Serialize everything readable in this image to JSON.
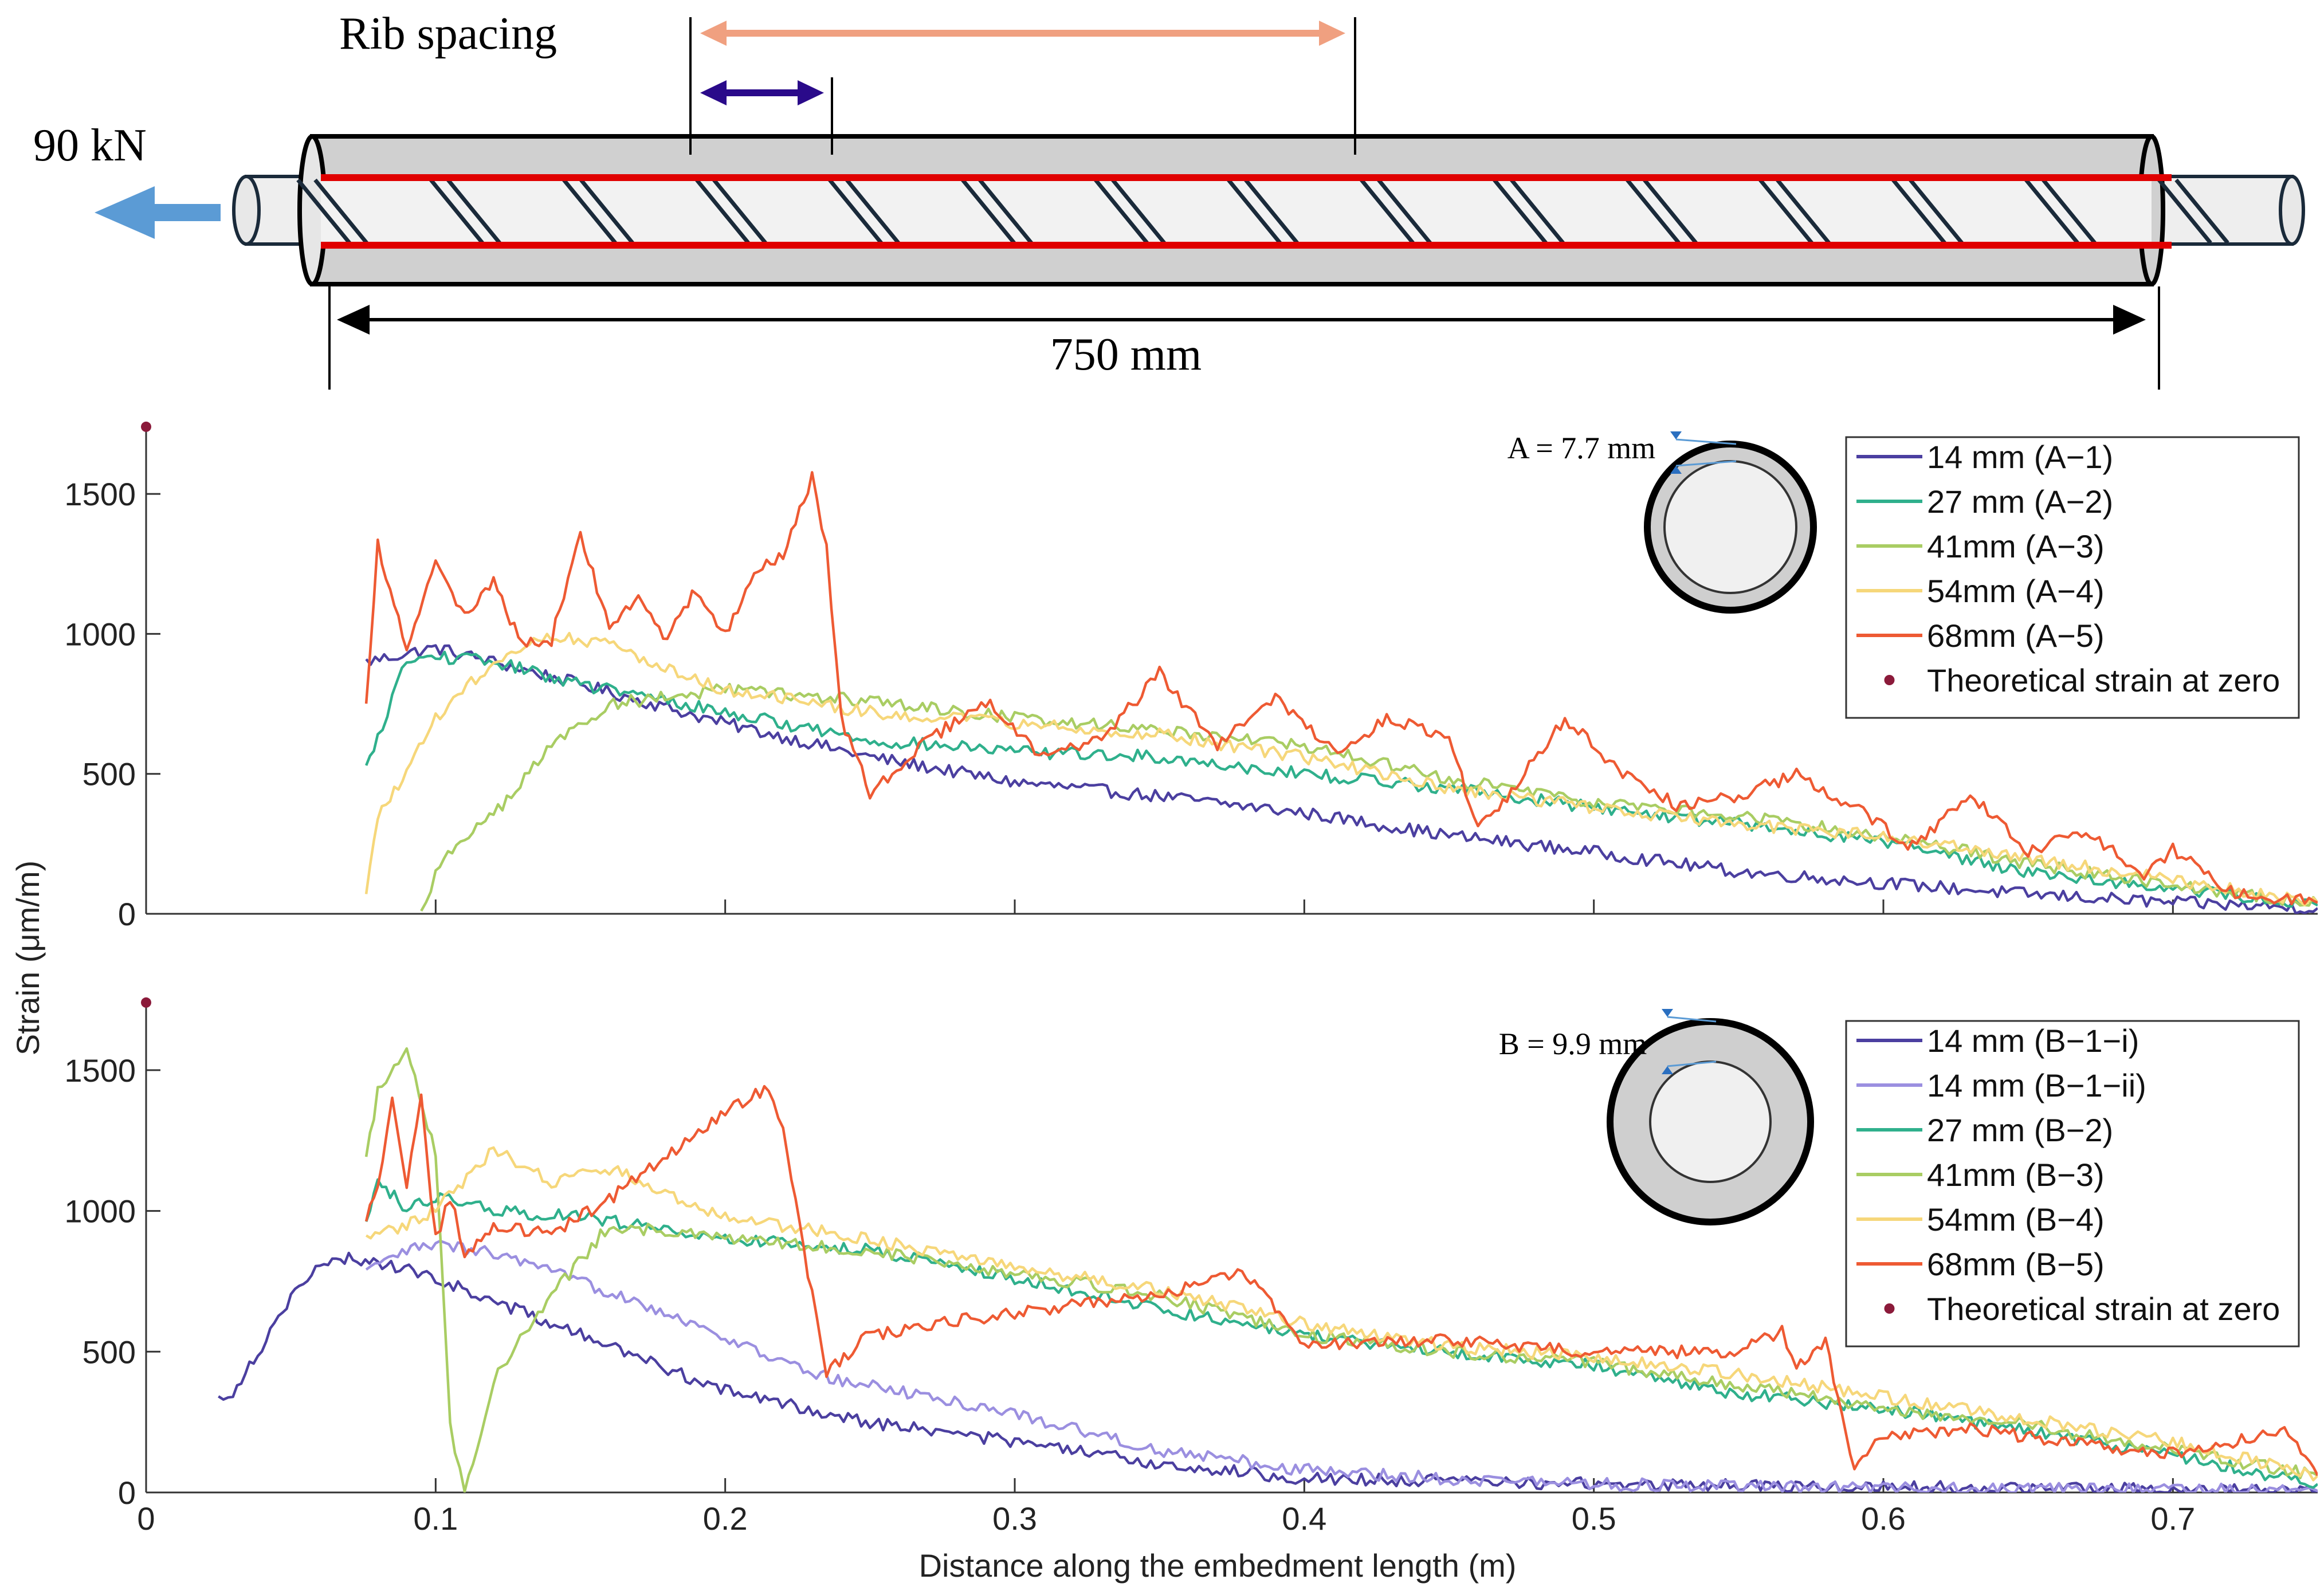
{
  "diagram": {
    "load_label": "90 kN",
    "rib_spacing_label": "Rib spacing",
    "length_label": "750 mm"
  },
  "y_axis_label": "Strain (μm/m)",
  "x_axis_label": "Distance along the embedment length (m)",
  "colors": {
    "c14": "#4b3fa0",
    "c14ii": "#9b8fe0",
    "c27": "#2fb08c",
    "c41": "#a9cd63",
    "c54": "#f6d77a",
    "c68": "#ee5a33",
    "theory": "#8b1a3a",
    "load_arrow": "#5b9bd5",
    "rib_arrow": "#f0a080",
    "rib_short": "#2a0a8a",
    "rebar_red": "#e00000"
  },
  "chart_data": [
    {
      "type": "line",
      "panel": "A",
      "title": "",
      "xlabel": "Distance along the embedment length (m)",
      "ylabel": "Strain (μm/m)",
      "xlim": [
        0,
        0.75
      ],
      "ylim": [
        0,
        1750
      ],
      "x_ticks": [
        0,
        0.1,
        0.2,
        0.3,
        0.4,
        0.5,
        0.6,
        0.7
      ],
      "y_ticks": [
        0,
        500,
        1000,
        1500
      ],
      "x_tick_labels": [
        "0",
        "0.1",
        "0.2",
        "0.3",
        "0.4",
        "0.5",
        "0.6",
        "0.7"
      ],
      "y_tick_labels": [
        "0",
        "500",
        "1000",
        "1500"
      ],
      "inset_label": "A = 7.7 mm",
      "legend_position": "top-right",
      "series": [
        {
          "name": "14 mm (A−1)",
          "color": "#4b3fa0",
          "x": [
            0.076,
            0.09,
            0.1,
            0.12,
            0.15,
            0.2,
            0.25,
            0.3,
            0.35,
            0.4,
            0.45,
            0.5,
            0.55,
            0.6,
            0.65,
            0.7,
            0.75
          ],
          "values": [
            900,
            930,
            950,
            900,
            820,
            680,
            560,
            470,
            420,
            360,
            280,
            220,
            150,
            110,
            70,
            40,
            20
          ]
        },
        {
          "name": "27 mm (A−2)",
          "color": "#2fb08c",
          "x": [
            0.076,
            0.08,
            0.085,
            0.09,
            0.1,
            0.12,
            0.15,
            0.2,
            0.25,
            0.3,
            0.35,
            0.4,
            0.45,
            0.5,
            0.55,
            0.6,
            0.65,
            0.7,
            0.75
          ],
          "values": [
            520,
            620,
            780,
            900,
            920,
            900,
            820,
            720,
            620,
            580,
            560,
            500,
            450,
            380,
            320,
            260,
            150,
            90,
            30
          ]
        },
        {
          "name": "41mm (A−3)",
          "color": "#a9cd63",
          "x": [
            0.095,
            0.1,
            0.11,
            0.12,
            0.14,
            0.16,
            0.2,
            0.25,
            0.3,
            0.35,
            0.4,
            0.45,
            0.5,
            0.55,
            0.6,
            0.65,
            0.7,
            0.75
          ],
          "values": [
            0,
            150,
            280,
            350,
            600,
            750,
            800,
            760,
            700,
            660,
            600,
            480,
            400,
            350,
            280,
            180,
            100,
            40
          ]
        },
        {
          "name": "54mm (A−4)",
          "color": "#f6d77a",
          "x": [
            0.076,
            0.08,
            0.09,
            0.1,
            0.12,
            0.14,
            0.16,
            0.2,
            0.25,
            0.3,
            0.35,
            0.4,
            0.45,
            0.5,
            0.55,
            0.6,
            0.65,
            0.7,
            0.75
          ],
          "values": [
            60,
            350,
            500,
            700,
            900,
            1000,
            960,
            800,
            720,
            680,
            640,
            560,
            450,
            380,
            320,
            280,
            200,
            120,
            40
          ]
        },
        {
          "name": "68mm (A−5)",
          "color": "#ee5a33",
          "x": [
            0.076,
            0.08,
            0.09,
            0.1,
            0.11,
            0.12,
            0.13,
            0.14,
            0.15,
            0.16,
            0.17,
            0.18,
            0.19,
            0.2,
            0.21,
            0.22,
            0.23,
            0.235,
            0.24,
            0.25,
            0.27,
            0.29,
            0.31,
            0.33,
            0.35,
            0.37,
            0.39,
            0.41,
            0.43,
            0.45,
            0.46,
            0.47,
            0.49,
            0.51,
            0.53,
            0.55,
            0.57,
            0.59,
            0.61,
            0.63,
            0.65,
            0.67,
            0.69,
            0.7,
            0.72,
            0.75
          ],
          "values": [
            740,
            1320,
            940,
            1280,
            1060,
            1180,
            960,
            980,
            1360,
            1020,
            1140,
            980,
            1160,
            1000,
            1220,
            1280,
            1560,
            1300,
            700,
            430,
            620,
            760,
            560,
            620,
            860,
            600,
            780,
            580,
            700,
            620,
            310,
            420,
            700,
            500,
            380,
            420,
            500,
            380,
            240,
            430,
            220,
            300,
            140,
            230,
            80,
            40
          ]
        }
      ],
      "theoretical_point": {
        "name": "Theoretical strain at zero",
        "color": "#8b1a3a",
        "x": 0,
        "y": 1740
      }
    },
    {
      "type": "line",
      "panel": "B",
      "title": "",
      "xlabel": "Distance along the embedment length (m)",
      "ylabel": "Strain (μm/m)",
      "xlim": [
        0,
        0.75
      ],
      "ylim": [
        0,
        1750
      ],
      "x_ticks": [
        0,
        0.1,
        0.2,
        0.3,
        0.4,
        0.5,
        0.6,
        0.7
      ],
      "y_ticks": [
        0,
        500,
        1000,
        1500
      ],
      "x_tick_labels": [
        "0",
        "0.1",
        "0.2",
        "0.3",
        "0.4",
        "0.5",
        "0.6",
        "0.7"
      ],
      "y_tick_labels": [
        "0",
        "500",
        "1000",
        "1500"
      ],
      "inset_label": "B = 9.9 mm",
      "legend_position": "top-right",
      "series": [
        {
          "name": "14 mm (B−1−i)",
          "color": "#4b3fa0",
          "x": [
            0.025,
            0.03,
            0.04,
            0.05,
            0.06,
            0.07,
            0.08,
            0.1,
            0.12,
            0.15,
            0.2,
            0.25,
            0.3,
            0.35,
            0.4,
            0.45,
            0.5,
            0.55,
            0.6,
            0.65,
            0.7,
            0.75
          ],
          "values": [
            330,
            360,
            520,
            700,
            800,
            830,
            820,
            760,
            680,
            560,
            360,
            250,
            180,
            100,
            50,
            40,
            30,
            25,
            20,
            15,
            10,
            5
          ]
        },
        {
          "name": "14 mm (B−1−ii)",
          "color": "#9b8fe0",
          "x": [
            0.076,
            0.09,
            0.1,
            0.12,
            0.14,
            0.17,
            0.2,
            0.23,
            0.26,
            0.3,
            0.35,
            0.4,
            0.45,
            0.5,
            0.55,
            0.6,
            0.65,
            0.7,
            0.75
          ],
          "values": [
            780,
            860,
            880,
            850,
            780,
            680,
            550,
            420,
            360,
            280,
            150,
            80,
            50,
            30,
            20,
            15,
            10,
            10,
            5
          ]
        },
        {
          "name": "27 mm (B−2)",
          "color": "#2fb08c",
          "x": [
            0.076,
            0.08,
            0.09,
            0.1,
            0.12,
            0.15,
            0.2,
            0.25,
            0.3,
            0.35,
            0.4,
            0.45,
            0.5,
            0.55,
            0.6,
            0.65,
            0.7,
            0.75
          ],
          "values": [
            950,
            1120,
            1000,
            1050,
            1000,
            980,
            900,
            860,
            760,
            650,
            560,
            500,
            450,
            350,
            300,
            220,
            130,
            30
          ]
        },
        {
          "name": "41mm (B−3)",
          "color": "#a9cd63",
          "x": [
            0.076,
            0.08,
            0.09,
            0.1,
            0.105,
            0.11,
            0.12,
            0.14,
            0.16,
            0.2,
            0.25,
            0.3,
            0.35,
            0.4,
            0.45,
            0.5,
            0.55,
            0.6,
            0.65,
            0.7,
            0.75
          ],
          "values": [
            1180,
            1420,
            1590,
            1200,
            240,
            0,
            400,
            700,
            950,
            900,
            860,
            780,
            700,
            560,
            500,
            460,
            380,
            300,
            240,
            150,
            60
          ]
        },
        {
          "name": "54mm (B−4)",
          "color": "#f6d77a",
          "x": [
            0.076,
            0.09,
            0.1,
            0.12,
            0.14,
            0.16,
            0.2,
            0.25,
            0.3,
            0.35,
            0.4,
            0.45,
            0.5,
            0.55,
            0.6,
            0.65,
            0.7,
            0.75
          ],
          "values": [
            900,
            950,
            1000,
            1220,
            1100,
            1150,
            980,
            900,
            800,
            720,
            600,
            520,
            480,
            420,
            340,
            260,
            180,
            60
          ]
        },
        {
          "name": "68mm (B−5)",
          "color": "#ee5a33",
          "x": [
            0.076,
            0.08,
            0.085,
            0.09,
            0.095,
            0.1,
            0.105,
            0.11,
            0.12,
            0.14,
            0.16,
            0.18,
            0.2,
            0.215,
            0.22,
            0.23,
            0.235,
            0.25,
            0.3,
            0.35,
            0.38,
            0.39,
            0.4,
            0.45,
            0.5,
            0.55,
            0.565,
            0.57,
            0.58,
            0.59,
            0.6,
            0.63,
            0.66,
            0.7,
            0.74,
            0.75
          ],
          "values": [
            950,
            1100,
            1380,
            1100,
            1400,
            900,
            1050,
            850,
            950,
            920,
            1040,
            1200,
            1350,
            1440,
            1300,
            700,
            430,
            560,
            640,
            700,
            780,
            660,
            520,
            540,
            500,
            500,
            570,
            440,
            540,
            80,
            200,
            230,
            180,
            140,
            220,
            60
          ]
        }
      ],
      "theoretical_point": {
        "name": "Theoretical strain at zero",
        "color": "#8b1a3a",
        "x": 0,
        "y": 1740
      }
    }
  ]
}
